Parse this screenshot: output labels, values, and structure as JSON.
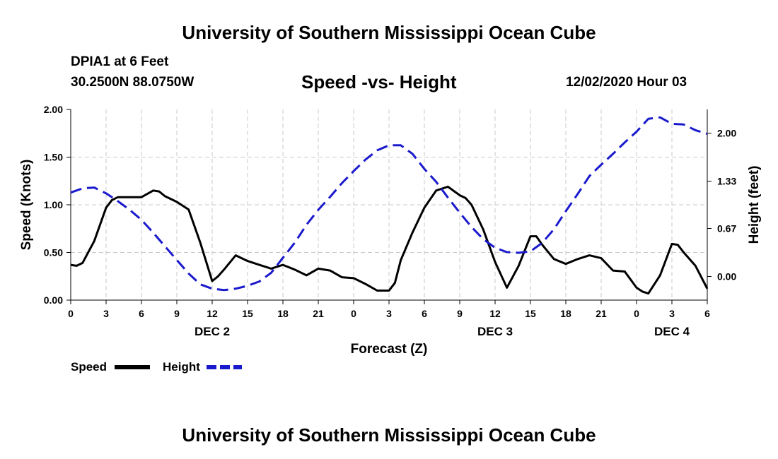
{
  "header": {
    "title": "University of Southern Mississippi Ocean Cube",
    "station": "DPIA1 at 6 Feet",
    "coords": "30.2500N 88.0750W",
    "datetime": "12/02/2020 Hour 03"
  },
  "footer": {
    "title": "University of Southern Mississippi Ocean Cube"
  },
  "colors": {
    "speed": "#000000",
    "height": "#1a1acd",
    "grid": "#c8c8c8"
  },
  "chart_data": {
    "type": "line",
    "title": "Speed -vs- Height",
    "xlabel": "Forecast (Z)",
    "ylabel": "Speed (Knots)",
    "y2label": "Height (feet)",
    "xlim": [
      0,
      54
    ],
    "ylim": [
      0,
      2
    ],
    "y2lim": [
      -0.33,
      2.33
    ],
    "x_ticks": [
      0,
      3,
      6,
      9,
      12,
      15,
      18,
      21,
      24,
      27,
      30,
      33,
      36,
      39,
      42,
      45,
      48,
      51,
      54
    ],
    "x_tick_labels": [
      "0",
      "3",
      "6",
      "9",
      "12",
      "15",
      "18",
      "21",
      "0",
      "3",
      "6",
      "9",
      "12",
      "15",
      "18",
      "21",
      "0",
      "3",
      "6"
    ],
    "y_ticks": [
      0,
      0.5,
      1,
      1.5,
      2
    ],
    "y_tick_labels": [
      "0.00",
      "0.50",
      "1.00",
      "1.50",
      "2.00"
    ],
    "y2_ticks": [
      0,
      0.67,
      1.33,
      2
    ],
    "y2_tick_labels": [
      "0.00",
      "0.67",
      "1.33",
      "2.00"
    ],
    "day_labels": [
      {
        "x": 12,
        "label": "DEC 2"
      },
      {
        "x": 36,
        "label": "DEC 3"
      },
      {
        "x": 51,
        "label": "DEC 4"
      }
    ],
    "legend": [
      {
        "label": "Speed",
        "style": "solid"
      },
      {
        "label": "Height",
        "style": "dashed"
      }
    ],
    "grid": true,
    "series": [
      {
        "name": "Speed",
        "axis": "left",
        "x": [
          0,
          0.5,
          1,
          2,
          3,
          3.5,
          4,
          5,
          6,
          7,
          7.5,
          8,
          9,
          10,
          11,
          12,
          12.5,
          13,
          14,
          15,
          16,
          17,
          18,
          19,
          20,
          21,
          22,
          23,
          24,
          25,
          26,
          27,
          27.5,
          28,
          29,
          30,
          31,
          32,
          33,
          33.5,
          34,
          35,
          36,
          37,
          38,
          39,
          39.5,
          40,
          41,
          42,
          43,
          44,
          45,
          46,
          47,
          48,
          48.5,
          49,
          50,
          51,
          51.5,
          52,
          53,
          54
        ],
        "values": [
          0.37,
          0.36,
          0.39,
          0.62,
          0.97,
          1.05,
          1.08,
          1.08,
          1.08,
          1.15,
          1.14,
          1.09,
          1.03,
          0.95,
          0.6,
          0.2,
          0.25,
          0.32,
          0.47,
          0.41,
          0.37,
          0.33,
          0.37,
          0.32,
          0.26,
          0.33,
          0.31,
          0.24,
          0.23,
          0.17,
          0.1,
          0.1,
          0.18,
          0.42,
          0.71,
          0.97,
          1.15,
          1.19,
          1.1,
          1.07,
          1.0,
          0.74,
          0.4,
          0.13,
          0.36,
          0.67,
          0.67,
          0.58,
          0.43,
          0.38,
          0.43,
          0.47,
          0.44,
          0.31,
          0.3,
          0.13,
          0.09,
          0.07,
          0.26,
          0.59,
          0.58,
          0.5,
          0.36,
          0.12
        ]
      },
      {
        "name": "Height",
        "axis": "right",
        "x": [
          0,
          1,
          2,
          3,
          4,
          5,
          6,
          7,
          8,
          9,
          10,
          11,
          12,
          13,
          14,
          15,
          16,
          17,
          18,
          19,
          20,
          21,
          22,
          23,
          24,
          25,
          26,
          27,
          28,
          29,
          30,
          31,
          32,
          33,
          34,
          35,
          36,
          37,
          38,
          39,
          40,
          41,
          42,
          43,
          44,
          45,
          46,
          47,
          48,
          49,
          50,
          51,
          52,
          53,
          54
        ],
        "values": [
          1.17,
          1.23,
          1.24,
          1.16,
          1.05,
          0.93,
          0.79,
          0.61,
          0.42,
          0.23,
          0.04,
          -0.11,
          -0.17,
          -0.19,
          -0.17,
          -0.13,
          -0.07,
          0.05,
          0.26,
          0.47,
          0.72,
          0.93,
          1.11,
          1.3,
          1.47,
          1.63,
          1.76,
          1.83,
          1.83,
          1.71,
          1.5,
          1.32,
          1.1,
          0.89,
          0.69,
          0.52,
          0.4,
          0.34,
          0.33,
          0.35,
          0.47,
          0.66,
          0.91,
          1.15,
          1.4,
          1.56,
          1.71,
          1.87,
          2.02,
          2.2,
          2.22,
          2.13,
          2.12,
          2.04,
          1.99
        ]
      }
    ]
  }
}
